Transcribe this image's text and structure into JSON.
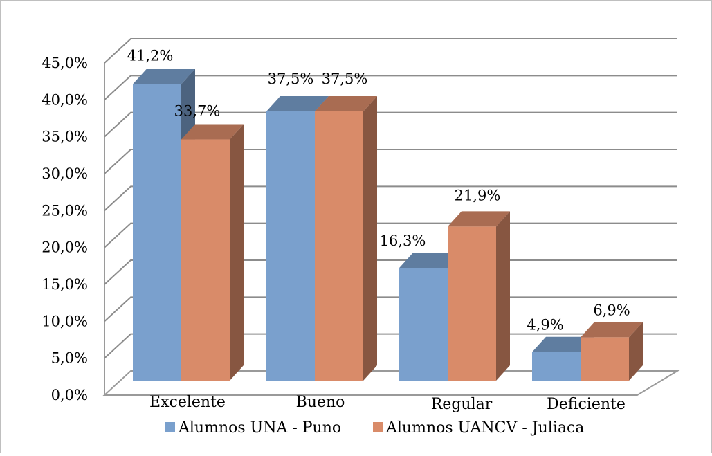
{
  "chart_data": {
    "type": "bar",
    "style": "3d-clustered-column",
    "categories": [
      "Excelente",
      "Bueno",
      "Regular",
      "Deficiente"
    ],
    "series": [
      {
        "name": "Alumnos UNA - Puno",
        "values": [
          41.2,
          37.5,
          16.3,
          4.9
        ],
        "labels": [
          "41,2%",
          "37,5%",
          "16,3%",
          "4,9%"
        ],
        "color": "#7aa0cd"
      },
      {
        "name": "Alumnos UANCV - Juliaca",
        "values": [
          33.7,
          37.5,
          21.9,
          6.9
        ],
        "labels": [
          "33,7%",
          "37,5%",
          "21,9%",
          "6,9%"
        ],
        "color": "#d98b69"
      }
    ],
    "yticks": [
      "0,0%",
      "5,0%",
      "10,0%",
      "15,0%",
      "20,0%",
      "25,0%",
      "30,0%",
      "35,0%",
      "40,0%",
      "45,0%"
    ],
    "ylim": [
      0,
      45
    ],
    "grid": true,
    "legend_position": "bottom"
  }
}
